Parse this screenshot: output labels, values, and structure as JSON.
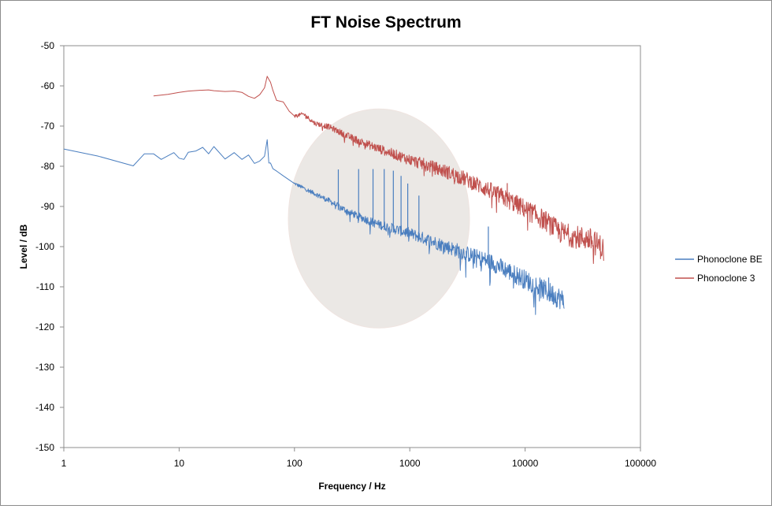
{
  "chart_data": {
    "type": "line",
    "title": "FT Noise Spectrum",
    "xlabel": "Frequency / Hz",
    "ylabel": "Level / dB",
    "x_scale": "log",
    "xlim": [
      1,
      100000
    ],
    "ylim": [
      -150,
      -50
    ],
    "x_ticks": [
      1,
      10,
      100,
      1000,
      10000,
      100000
    ],
    "x_tick_labels": [
      "1",
      "10",
      "100",
      "1000",
      "10000",
      "100000"
    ],
    "y_ticks": [
      -50,
      -60,
      -70,
      -80,
      -90,
      -100,
      -110,
      -120,
      -130,
      -140,
      -150
    ],
    "y_tick_labels": [
      "-50",
      "-60",
      "-70",
      "-80",
      "-90",
      "-100",
      "-110",
      "-120",
      "-130",
      "-140",
      "-150"
    ],
    "grid": false,
    "legend_position": "right",
    "series": [
      {
        "name": "Phonoclone BE",
        "color": "#4a7ebf",
        "x": [
          1,
          2,
          4,
          5,
          6,
          7,
          8,
          9,
          10,
          11,
          12,
          14,
          16,
          18,
          20,
          25,
          30,
          35,
          40,
          45,
          50,
          55,
          58,
          60,
          62,
          65,
          70,
          80,
          100,
          150,
          200,
          300,
          500,
          1000,
          2000,
          3000,
          5000,
          10000,
          15000,
          20000,
          22000
        ],
        "y": [
          -75.7,
          -77.5,
          -79.9,
          -76.9,
          -76.9,
          -78.3,
          -77.4,
          -76.6,
          -78.0,
          -78.3,
          -76.5,
          -76.2,
          -75.3,
          -76.9,
          -75.1,
          -78.2,
          -76.6,
          -78.3,
          -77.2,
          -79.3,
          -78.7,
          -77.5,
          -73.4,
          -79.2,
          -79.2,
          -80.6,
          -81.2,
          -82.4,
          -84.3,
          -86.8,
          -88.6,
          -91.5,
          -94.2,
          -96.7,
          -99.8,
          -101.6,
          -103.8,
          -108.2,
          -111.0,
          -112.8,
          -113.8
        ]
      },
      {
        "name": "Phonoclone 3",
        "color": "#c0504d",
        "x": [
          6,
          8,
          10,
          12,
          15,
          18,
          20,
          25,
          30,
          35,
          40,
          45,
          50,
          55,
          58,
          60,
          62,
          65,
          70,
          80,
          90,
          100,
          120,
          150,
          200,
          300,
          500,
          1000,
          2000,
          3000,
          5000,
          10000,
          15000,
          20000,
          25000,
          30000,
          35000,
          40000,
          45000,
          48000
        ],
        "y": [
          -62.5,
          -62.1,
          -61.6,
          -61.3,
          -61.1,
          -61.0,
          -61.2,
          -61.4,
          -61.3,
          -61.6,
          -62.6,
          -63.1,
          -62.2,
          -60.5,
          -57.6,
          -58.4,
          -59.1,
          -61.1,
          -63.6,
          -64.0,
          -66.3,
          -67.5,
          -67.0,
          -69.3,
          -70.2,
          -72.7,
          -75.3,
          -78.4,
          -81.2,
          -83.1,
          -86.1,
          -90.6,
          -93.6,
          -96.4,
          -97.3,
          -97.8,
          -98.0,
          -99.0,
          -100.0,
          -101.0
        ]
      }
    ],
    "annotations": [
      {
        "type": "harmonic-spikes",
        "series": "Phonoclone BE",
        "x": [
          240,
          360,
          480,
          600,
          720,
          840,
          960,
          1200,
          4800,
          16000
        ],
        "y": [
          -80.8,
          -80.7,
          -80.7,
          -80.7,
          -81.1,
          -82.4,
          -84.3,
          -87.3,
          -95.0,
          -107.7
        ]
      },
      {
        "type": "harmonic-spikes",
        "series": "Phonoclone 3",
        "x": [
          360,
          7000
        ],
        "y": [
          -73.2,
          -84.2
        ]
      },
      {
        "type": "highlight-ellipse",
        "center_x": 540,
        "center_y": -93,
        "color": "#e8e4e0"
      }
    ]
  }
}
